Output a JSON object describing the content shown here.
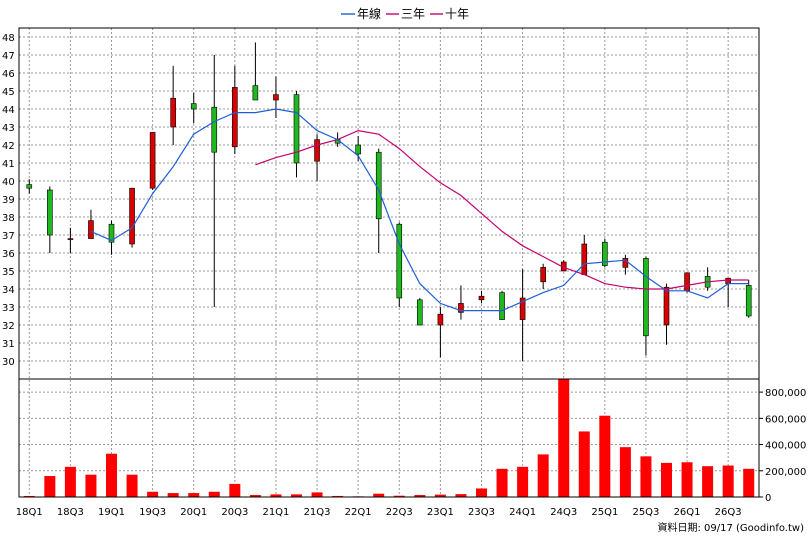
{
  "chart_data": {
    "type": "candlestick+line+bar",
    "legend": [
      {
        "name": "年線",
        "color": "#1f5fd6"
      },
      {
        "name": "三年",
        "color": "#c8006e"
      },
      {
        "name": "十年",
        "color": "#c8006e"
      }
    ],
    "footer_text": "資料日期: 09/17  (Goodinfo.tw)",
    "colors": {
      "up": "#d80000",
      "down": "#1fb81f",
      "wick": "#000000",
      "volume": "#ff0000",
      "grid": "#9a9a9a"
    },
    "price_axis": {
      "min": 29,
      "max": 48.5,
      "ticks": [
        30,
        31,
        32,
        33,
        34,
        35,
        36,
        37,
        38,
        39,
        40,
        41,
        42,
        43,
        44,
        45,
        46,
        47,
        48
      ],
      "side": "left"
    },
    "volume_axis": {
      "min": 0,
      "max": 900000,
      "ticks": [
        0,
        200000,
        400000,
        600000,
        800000
      ],
      "tick_labels": [
        "0",
        "200,000",
        "400,000",
        "600,000",
        "800,000"
      ],
      "side": "right"
    },
    "x_labels": [
      "18Q1",
      "18Q3",
      "19Q1",
      "19Q3",
      "20Q1",
      "20Q3",
      "21Q1",
      "21Q3",
      "22Q1",
      "22Q3",
      "23Q1",
      "23Q3",
      "24Q1",
      "24Q3",
      "25Q1",
      "25Q3",
      "26Q1",
      "26Q3"
    ],
    "candles": [
      {
        "o": 39.8,
        "h": 40.1,
        "l": 39.3,
        "c": 39.6
      },
      {
        "o": 39.5,
        "h": 39.7,
        "l": 36.0,
        "c": 37.0
      },
      {
        "o": 36.8,
        "h": 37.4,
        "l": 36.0,
        "c": 36.8
      },
      {
        "o": 36.8,
        "h": 38.4,
        "l": 36.8,
        "c": 37.8
      },
      {
        "o": 37.6,
        "h": 37.8,
        "l": 35.9,
        "c": 36.6
      },
      {
        "o": 36.5,
        "h": 39.6,
        "l": 36.3,
        "c": 39.6
      },
      {
        "o": 39.6,
        "h": 42.7,
        "l": 39.5,
        "c": 42.7
      },
      {
        "o": 43.0,
        "h": 46.4,
        "l": 42.0,
        "c": 44.6
      },
      {
        "o": 44.3,
        "h": 44.9,
        "l": 43.2,
        "c": 44.0
      },
      {
        "o": 44.1,
        "h": 47.0,
        "l": 33.0,
        "c": 41.6
      },
      {
        "o": 41.9,
        "h": 46.4,
        "l": 41.5,
        "c": 45.2
      },
      {
        "o": 45.3,
        "h": 47.7,
        "l": 44.5,
        "c": 44.5
      },
      {
        "o": 44.5,
        "h": 45.8,
        "l": 43.5,
        "c": 44.8
      },
      {
        "o": 44.8,
        "h": 45.0,
        "l": 40.2,
        "c": 41.0
      },
      {
        "o": 41.1,
        "h": 42.6,
        "l": 40.0,
        "c": 42.3
      },
      {
        "o": 42.3,
        "h": 42.7,
        "l": 41.9,
        "c": 42.1
      },
      {
        "o": 42.0,
        "h": 42.5,
        "l": 41.1,
        "c": 41.5
      },
      {
        "o": 41.6,
        "h": 41.8,
        "l": 36.0,
        "c": 37.9
      },
      {
        "o": 37.6,
        "h": 37.7,
        "l": 33.0,
        "c": 33.5
      },
      {
        "o": 33.4,
        "h": 33.5,
        "l": 32.0,
        "c": 32.0
      },
      {
        "o": 32.0,
        "h": 33.0,
        "l": 30.2,
        "c": 32.6
      },
      {
        "o": 32.7,
        "h": 34.2,
        "l": 32.3,
        "c": 33.2
      },
      {
        "o": 33.4,
        "h": 33.9,
        "l": 33.2,
        "c": 33.6
      },
      {
        "o": 33.8,
        "h": 33.9,
        "l": 32.3,
        "c": 32.3
      },
      {
        "o": 32.3,
        "h": 35.1,
        "l": 30.0,
        "c": 33.5
      },
      {
        "o": 34.4,
        "h": 35.4,
        "l": 34.0,
        "c": 35.2
      },
      {
        "o": 35.0,
        "h": 35.6,
        "l": 35.0,
        "c": 35.5
      },
      {
        "o": 34.8,
        "h": 37.0,
        "l": 34.8,
        "c": 36.5
      },
      {
        "o": 36.6,
        "h": 36.8,
        "l": 35.2,
        "c": 35.3
      },
      {
        "o": 35.2,
        "h": 35.9,
        "l": 34.8,
        "c": 35.7
      },
      {
        "o": 35.7,
        "h": 35.8,
        "l": 30.3,
        "c": 31.4
      },
      {
        "o": 32.0,
        "h": 34.3,
        "l": 30.9,
        "c": 34.1
      },
      {
        "o": 33.9,
        "h": 34.9,
        "l": 33.8,
        "c": 34.9
      },
      {
        "o": 34.7,
        "h": 35.2,
        "l": 33.9,
        "c": 34.1
      },
      {
        "o": 34.3,
        "h": 34.6,
        "l": 33.0,
        "c": 34.6
      },
      {
        "o": 34.2,
        "h": 34.5,
        "l": 32.4,
        "c": 32.5
      }
    ],
    "year_line": [
      null,
      null,
      null,
      37.2,
      36.7,
      37.4,
      39.3,
      40.8,
      42.6,
      43.3,
      43.8,
      43.8,
      44.0,
      43.8,
      42.8,
      42.3,
      41.4,
      39.5,
      36.5,
      34.3,
      33.2,
      32.8,
      32.8,
      32.8,
      33.3,
      33.8,
      34.2,
      35.4,
      35.5,
      35.6,
      34.7,
      33.9,
      33.9,
      33.5,
      34.3,
      34.3
    ],
    "three_year_line": [
      null,
      null,
      null,
      null,
      null,
      null,
      null,
      null,
      null,
      null,
      null,
      40.9,
      41.3,
      41.6,
      42.0,
      42.3,
      42.8,
      42.6,
      41.8,
      40.8,
      39.9,
      39.2,
      38.2,
      37.2,
      36.4,
      35.8,
      35.2,
      34.8,
      34.3,
      34.1,
      34.0,
      34.0,
      34.2,
      34.4,
      34.5,
      34.5
    ],
    "volume": [
      8000,
      160000,
      230000,
      170000,
      330000,
      170000,
      40000,
      30000,
      30000,
      40000,
      100000,
      15000,
      20000,
      20000,
      35000,
      8000,
      5000,
      25000,
      10000,
      15000,
      18000,
      22000,
      65000,
      215000,
      230000,
      325000,
      900000,
      500000,
      620000,
      380000,
      310000,
      260000,
      265000,
      235000,
      240000,
      215000
    ]
  }
}
